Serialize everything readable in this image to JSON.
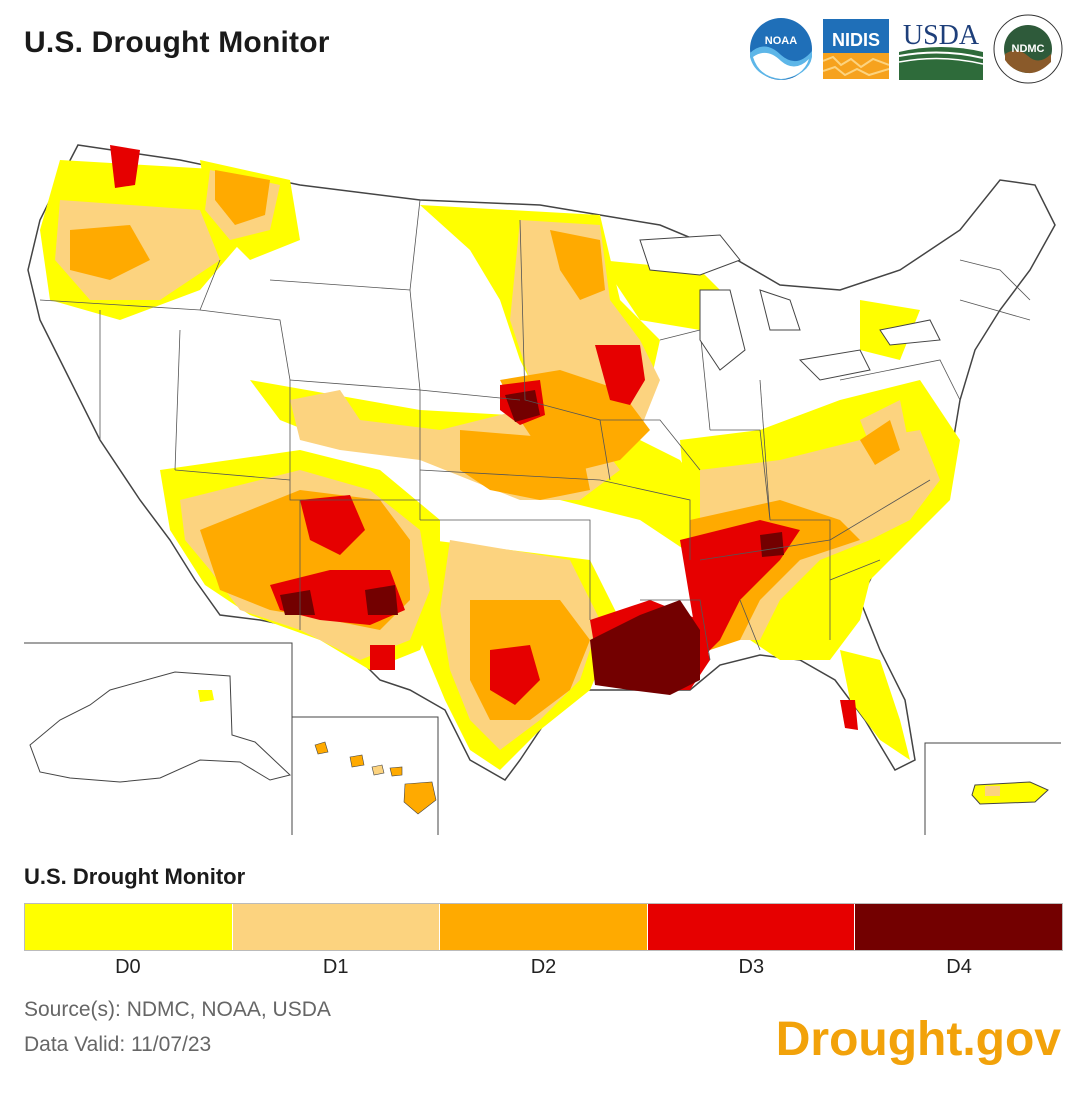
{
  "header": {
    "title": "U.S. Drought Monitor"
  },
  "logos": {
    "noaa": "NOAA",
    "nidis": "NIDIS",
    "usda": "USDA",
    "ndmc": "NDMC"
  },
  "legend": {
    "title": "U.S. Drought Monitor",
    "categories": [
      {
        "label": "D0",
        "color": "#ffff00"
      },
      {
        "label": "D1",
        "color": "#fcd37f"
      },
      {
        "label": "D2",
        "color": "#ffaa00"
      },
      {
        "label": "D3",
        "color": "#e60000"
      },
      {
        "label": "D4",
        "color": "#730000"
      }
    ]
  },
  "footer": {
    "source": "Source(s): NDMC, NOAA, USDA",
    "data_valid": "Data Valid: 11/07/23",
    "brand": "Drought.gov"
  }
}
